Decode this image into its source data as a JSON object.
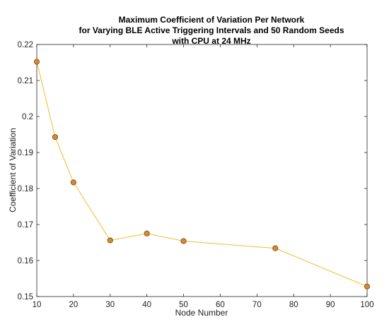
{
  "chart_data": {
    "type": "line",
    "title_lines": [
      "Maximum Coefficient of Variation Per Network",
      "for Varying BLE Active Triggering Intervals and 50 Random Seeds",
      "with CPU at 24 MHz"
    ],
    "xlabel": "Node Number",
    "ylabel": "Coefficient of Variation",
    "xlim": [
      10,
      100
    ],
    "ylim": [
      0.15,
      0.22
    ],
    "x_ticks": [
      "10",
      "20",
      "30",
      "40",
      "50",
      "60",
      "70",
      "80",
      "90",
      "100"
    ],
    "y_ticks": [
      "0.15",
      "0.16",
      "0.17",
      "0.18",
      "0.19",
      "0.2",
      "0.21",
      "0.22"
    ],
    "grid": false,
    "series": [
      {
        "x": [
          10,
          15,
          20,
          30,
          40,
          50,
          75,
          100
        ],
        "y": [
          0.2152,
          0.1943,
          0.1817,
          0.1656,
          0.1675,
          0.1654,
          0.1634,
          0.1528
        ],
        "line_color": "#F5B92E",
        "marker_fill": "#D9892B",
        "marker_edge": "#7A5A2E"
      }
    ]
  }
}
